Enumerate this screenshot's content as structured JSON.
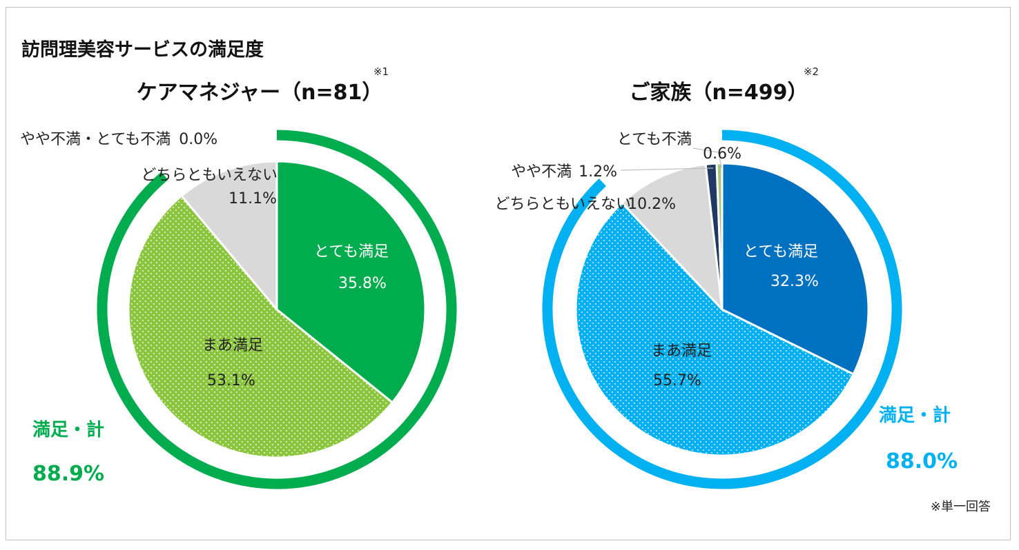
{
  "title": "訪問理美容サービスの満足度",
  "footnote": "※単一回答",
  "colors": {
    "green_dark": "#00AC4E",
    "green_light": "#8CC63F",
    "gray": "#D9D9D9",
    "blue_dark": "#0070C0",
    "blue_light": "#00B0F0",
    "navy": "#1F3864",
    "olive": "#A9C47F"
  },
  "chart_data": [
    {
      "type": "pie",
      "title": "ケアマネジャー（n=81）",
      "note": "※1",
      "total_label": "満足・計",
      "total_value": "88.9%",
      "total_percent": 88.9,
      "slices": [
        {
          "name": "とても満足",
          "value": 35.8,
          "label": "35.8%",
          "color": "#00AC4E",
          "pattern": false
        },
        {
          "name": "まあ満足",
          "value": 53.1,
          "label": "53.1%",
          "color": "#8CC63F",
          "pattern": true
        },
        {
          "name": "どちらともいえない",
          "value": 11.1,
          "label": "11.1%",
          "color": "#D9D9D9",
          "pattern": false
        },
        {
          "name": "やや不満・とても不満",
          "value": 0.0,
          "label": "0.0%",
          "color": "#1F3864",
          "pattern": false
        }
      ]
    },
    {
      "type": "pie",
      "title": "ご家族（n=499）",
      "note": "※2",
      "total_label": "満足・計",
      "total_value": "88.0%",
      "total_percent": 88.0,
      "slices": [
        {
          "name": "とても満足",
          "value": 32.3,
          "label": "32.3%",
          "color": "#0070C0",
          "pattern": false
        },
        {
          "name": "まあ満足",
          "value": 55.7,
          "label": "55.7%",
          "color": "#00B0F0",
          "pattern": true
        },
        {
          "name": "どちらともいえない",
          "value": 10.2,
          "label": "10.2%",
          "color": "#D9D9D9",
          "pattern": false
        },
        {
          "name": "やや不満",
          "value": 1.2,
          "label": "1.2%",
          "color": "#1F3864",
          "pattern": false
        },
        {
          "name": "とても不満",
          "value": 0.6,
          "label": "0.6%",
          "color": "#A9C47F",
          "pattern": false
        }
      ]
    }
  ]
}
